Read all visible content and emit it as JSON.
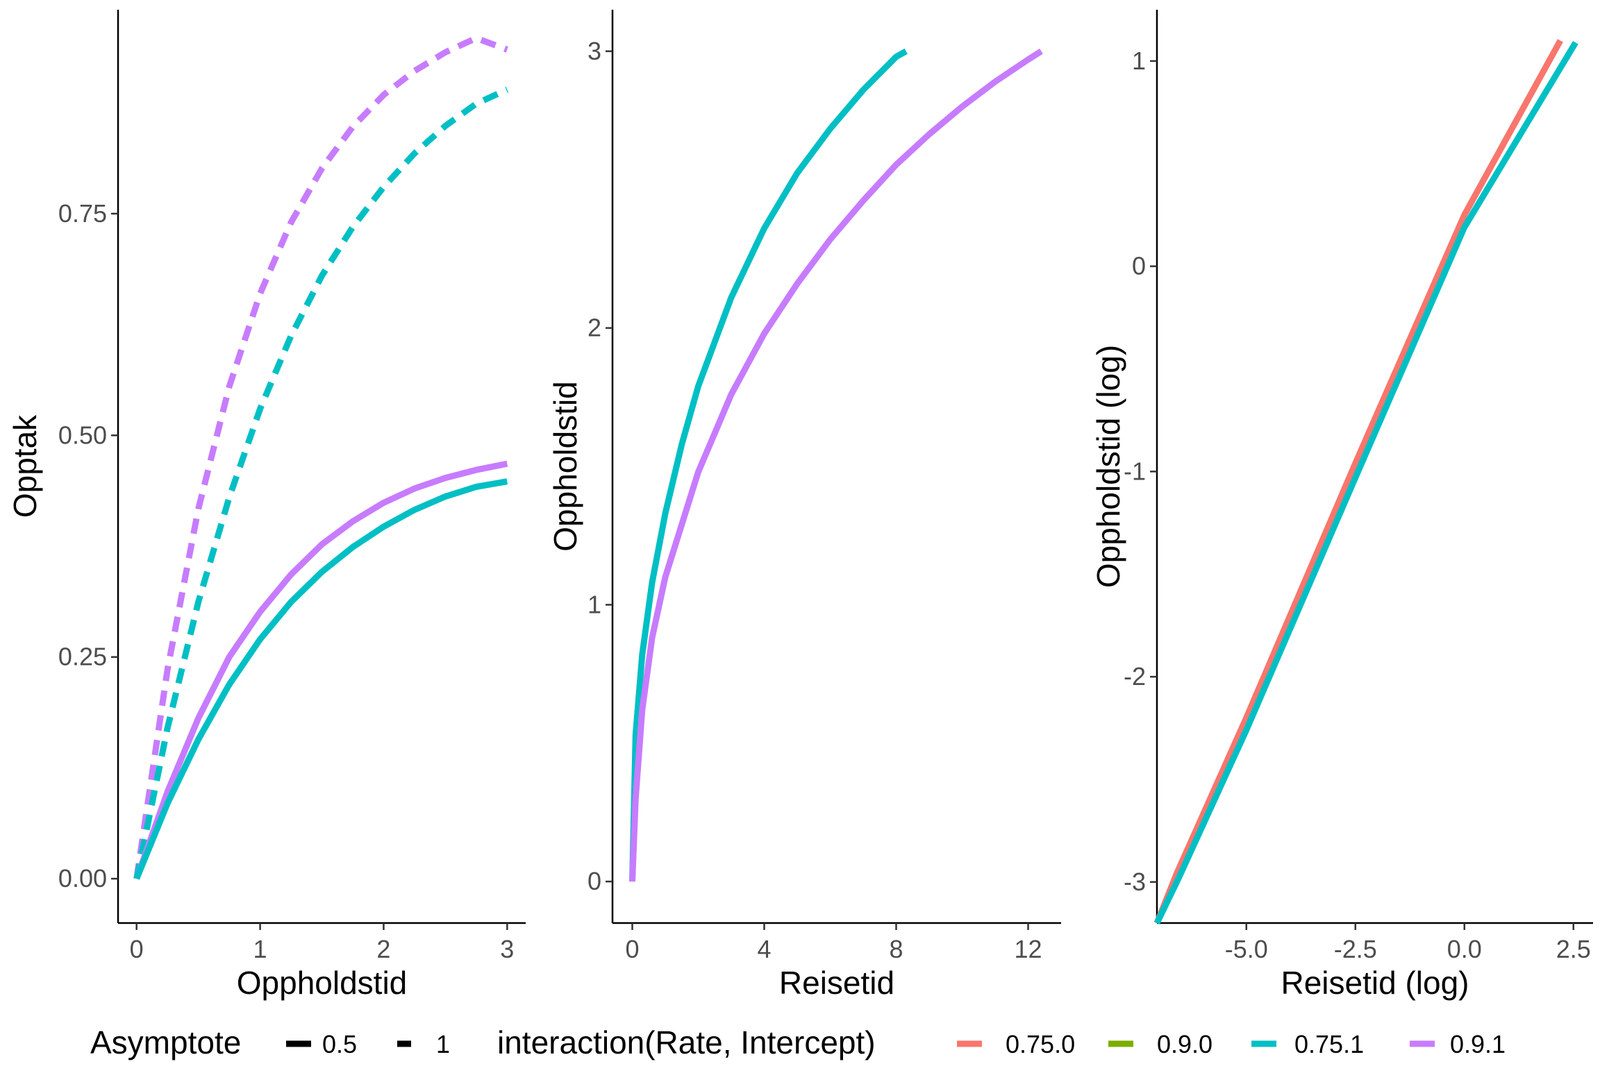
{
  "chart_data": [
    {
      "type": "line",
      "xlabel": "Oppholdstid",
      "ylabel": "Opptak",
      "xlim": [
        -0.15,
        3.15
      ],
      "ylim": [
        -0.05,
        0.98
      ],
      "xticks": [
        0,
        1,
        2,
        3
      ],
      "xtick_labels": [
        "0",
        "1",
        "2",
        "3"
      ],
      "yticks": [
        0,
        0.25,
        0.5,
        0.75
      ],
      "ytick_labels": [
        "0.00",
        "0.25",
        "0.50",
        "0.75"
      ],
      "series": [
        {
          "key": "0.9.1",
          "asymptote": "1",
          "x": [
            0,
            0.25,
            0.5,
            0.75,
            1,
            1.25,
            1.5,
            1.75,
            2,
            2.25,
            2.5,
            2.75,
            3
          ],
          "y": [
            0,
            0.236,
            0.417,
            0.555,
            0.66,
            0.74,
            0.801,
            0.848,
            0.884,
            0.911,
            0.932,
            0.948,
            0.935
          ]
        },
        {
          "key": "0.75.1",
          "asymptote": "1",
          "x": [
            0,
            0.25,
            0.5,
            0.75,
            1,
            1.25,
            1.5,
            1.75,
            2,
            2.25,
            2.5,
            2.75,
            3
          ],
          "y": [
            0,
            0.17,
            0.312,
            0.43,
            0.53,
            0.612,
            0.68,
            0.735,
            0.78,
            0.818,
            0.849,
            0.874,
            0.89
          ]
        },
        {
          "key": "0.9.1",
          "asymptote": "0.5",
          "x": [
            0,
            0.25,
            0.5,
            0.75,
            1,
            1.25,
            1.5,
            1.75,
            2,
            2.25,
            2.5,
            2.75,
            3
          ],
          "y": [
            0,
            0.098,
            0.181,
            0.25,
            0.301,
            0.343,
            0.377,
            0.403,
            0.424,
            0.44,
            0.452,
            0.461,
            0.468
          ]
        },
        {
          "key": "0.75.1",
          "asymptote": "0.5",
          "x": [
            0,
            0.25,
            0.5,
            0.75,
            1,
            1.25,
            1.5,
            1.75,
            2,
            2.25,
            2.5,
            2.75,
            3
          ],
          "y": [
            0,
            0.085,
            0.157,
            0.219,
            0.27,
            0.312,
            0.346,
            0.374,
            0.397,
            0.416,
            0.431,
            0.442,
            0.448
          ]
        }
      ]
    },
    {
      "type": "line",
      "xlabel": "Reisetid",
      "ylabel": "Oppholdstid",
      "xlim": [
        -0.6,
        13.0
      ],
      "ylim": [
        -0.15,
        3.15
      ],
      "xticks": [
        0,
        4,
        8,
        12
      ],
      "xtick_labels": [
        "0",
        "4",
        "8",
        "12"
      ],
      "yticks": [
        0,
        1,
        2,
        3
      ],
      "ytick_labels": [
        "0",
        "1",
        "2",
        "3"
      ],
      "series": [
        {
          "key": "0.75.1",
          "asymptote": "",
          "x": [
            0,
            0.1,
            0.3,
            0.6,
            1,
            1.5,
            2,
            3,
            4,
            5,
            6,
            7,
            8,
            8.3
          ],
          "y": [
            0,
            0.53,
            0.82,
            1.08,
            1.33,
            1.58,
            1.79,
            2.11,
            2.36,
            2.56,
            2.72,
            2.86,
            2.98,
            3.0
          ]
        },
        {
          "key": "0.9.1",
          "asymptote": "",
          "x": [
            0,
            0.1,
            0.3,
            0.6,
            1,
            2,
            3,
            4,
            5,
            6,
            7,
            8,
            9,
            10,
            11,
            12,
            12.4
          ],
          "y": [
            0,
            0.3,
            0.62,
            0.88,
            1.1,
            1.48,
            1.76,
            1.98,
            2.16,
            2.32,
            2.46,
            2.59,
            2.7,
            2.8,
            2.89,
            2.97,
            3.0
          ]
        }
      ]
    },
    {
      "type": "line",
      "xlabel": "Reisetid (log)",
      "ylabel": "Oppholdstid (log)",
      "xlim": [
        -7.05,
        2.95
      ],
      "ylim": [
        -3.2,
        1.25
      ],
      "xticks": [
        -5.0,
        -2.5,
        0.0,
        2.5
      ],
      "xtick_labels": [
        "-5.0",
        "-2.5",
        "0.0",
        "2.5"
      ],
      "yticks": [
        -3,
        -2,
        -1,
        0,
        1
      ],
      "ytick_labels": [
        "-3",
        "-2",
        "-1",
        "0",
        "1"
      ],
      "series": [
        {
          "key": "0.75.0",
          "asymptote": "",
          "x": [
            -7.05,
            -6.6,
            -5.0,
            -2.5,
            0.0,
            2.2
          ],
          "y": [
            -3.2,
            -2.96,
            -2.2,
            -0.96,
            0.25,
            1.1
          ]
        },
        {
          "key": "0.75.1",
          "asymptote": "",
          "x": [
            -7.05,
            -6.55,
            -5.0,
            -2.5,
            0.0,
            2.55
          ],
          "y": [
            -3.2,
            -2.98,
            -2.26,
            -1.03,
            0.19,
            1.09
          ]
        }
      ]
    }
  ],
  "legend": {
    "position": "bottom",
    "asymptote_title": "Asymptote",
    "asymptote_items": [
      {
        "label": "0.5",
        "dash": "solid"
      },
      {
        "label": "1",
        "dash": "dashed"
      }
    ],
    "color_title": "interaction(Rate, Intercept)",
    "color_items": [
      {
        "label": "0.75.0",
        "color": "#F8766D"
      },
      {
        "label": "0.9.0",
        "color": "#7CAE00"
      },
      {
        "label": "0.75.1",
        "color": "#00BFC4"
      },
      {
        "label": "0.9.1",
        "color": "#C77CFF"
      }
    ]
  },
  "colors": {
    "0.75.0": "#F8766D",
    "0.9.0": "#7CAE00",
    "0.75.1": "#00BFC4",
    "0.9.1": "#C77CFF"
  }
}
